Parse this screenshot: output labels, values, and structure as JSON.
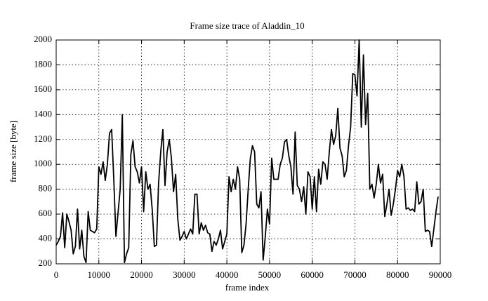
{
  "chart_data": {
    "type": "line",
    "title": "Frame size trace of Aladdin_10",
    "x_label": "frame index",
    "y_label": "frame size [byte]",
    "color": "#000000",
    "grid": true,
    "xlim": [
      0,
      90000
    ],
    "xticks": [
      0,
      10000,
      20000,
      30000,
      40000,
      50000,
      60000,
      70000,
      80000,
      90000
    ],
    "ylim": [
      200,
      2000
    ],
    "yticks": [
      200,
      400,
      600,
      800,
      1000,
      1200,
      1400,
      1600,
      1800,
      2000
    ],
    "x": [
      0,
      500,
      1000,
      1500,
      2000,
      2500,
      3000,
      3500,
      4000,
      4500,
      5000,
      5500,
      6000,
      6500,
      7000,
      7500,
      8000,
      8500,
      9000,
      9500,
      10000,
      10500,
      11000,
      11500,
      12000,
      12500,
      13000,
      13500,
      14000,
      14500,
      15000,
      15500,
      16000,
      16500,
      17000,
      17500,
      18000,
      18500,
      19000,
      19500,
      20000,
      20500,
      21000,
      21500,
      22000,
      22500,
      23000,
      23500,
      24000,
      24500,
      25000,
      25500,
      26000,
      26500,
      27000,
      27500,
      28000,
      28500,
      29000,
      29500,
      30000,
      30500,
      31000,
      31500,
      32000,
      32500,
      33000,
      33500,
      34000,
      34500,
      35000,
      35500,
      36000,
      36500,
      37000,
      37500,
      38000,
      38500,
      39000,
      39500,
      40000,
      40500,
      41000,
      41500,
      42000,
      42500,
      43000,
      43500,
      44000,
      44500,
      45000,
      45500,
      46000,
      46500,
      47000,
      47500,
      48000,
      48500,
      49000,
      49500,
      50000,
      50500,
      51000,
      51500,
      52000,
      52500,
      53000,
      53500,
      54000,
      54500,
      55000,
      55500,
      56000,
      56500,
      57000,
      57500,
      58000,
      58500,
      59000,
      59500,
      60000,
      60500,
      61000,
      61500,
      62000,
      62500,
      63000,
      63500,
      64000,
      64500,
      65000,
      65500,
      66000,
      66500,
      67000,
      67500,
      68000,
      68500,
      69000,
      69500,
      70000,
      70500,
      71000,
      71500,
      72000,
      72500,
      73000,
      73500,
      74000,
      74500,
      75000,
      75500,
      76000,
      76500,
      77000,
      77500,
      78000,
      78500,
      79000,
      79500,
      80000,
      80500,
      81000,
      81500,
      82000,
      82500,
      83000,
      83500,
      84000,
      84500,
      85000,
      85500,
      86000,
      86500,
      87000,
      87500,
      88000,
      88500,
      89000,
      89500
    ],
    "values": [
      350,
      380,
      420,
      610,
      330,
      600,
      540,
      470,
      280,
      340,
      640,
      320,
      470,
      260,
      210,
      620,
      470,
      460,
      450,
      480,
      980,
      920,
      1020,
      870,
      1000,
      1250,
      1280,
      880,
      420,
      610,
      800,
      1400,
      210,
      280,
      330,
      1080,
      1190,
      980,
      940,
      850,
      980,
      620,
      940,
      800,
      840,
      640,
      340,
      350,
      850,
      1100,
      1280,
      830,
      1100,
      1200,
      1050,
      780,
      920,
      560,
      390,
      420,
      460,
      400,
      440,
      480,
      440,
      760,
      760,
      440,
      530,
      470,
      510,
      450,
      440,
      300,
      380,
      350,
      400,
      470,
      320,
      380,
      440,
      900,
      780,
      880,
      800,
      980,
      880,
      290,
      350,
      520,
      800,
      1050,
      1150,
      1100,
      680,
      650,
      780,
      230,
      420,
      640,
      520,
      1050,
      880,
      880,
      880,
      1000,
      1050,
      1180,
      1200,
      1070,
      980,
      760,
      1260,
      830,
      800,
      700,
      820,
      600,
      940,
      900,
      640,
      900,
      620,
      960,
      840,
      1020,
      1000,
      880,
      1100,
      1280,
      1160,
      1230,
      1450,
      1130,
      1070,
      900,
      950,
      1150,
      1300,
      1730,
      1720,
      1550,
      2000,
      1300,
      1880,
      1320,
      1570,
      800,
      840,
      730,
      840,
      1000,
      850,
      920,
      580,
      680,
      800,
      590,
      680,
      800,
      950,
      900,
      1000,
      900,
      640,
      650,
      630,
      640,
      620,
      860,
      680,
      700,
      800,
      460,
      470,
      460,
      340,
      480,
      620,
      740
    ]
  }
}
